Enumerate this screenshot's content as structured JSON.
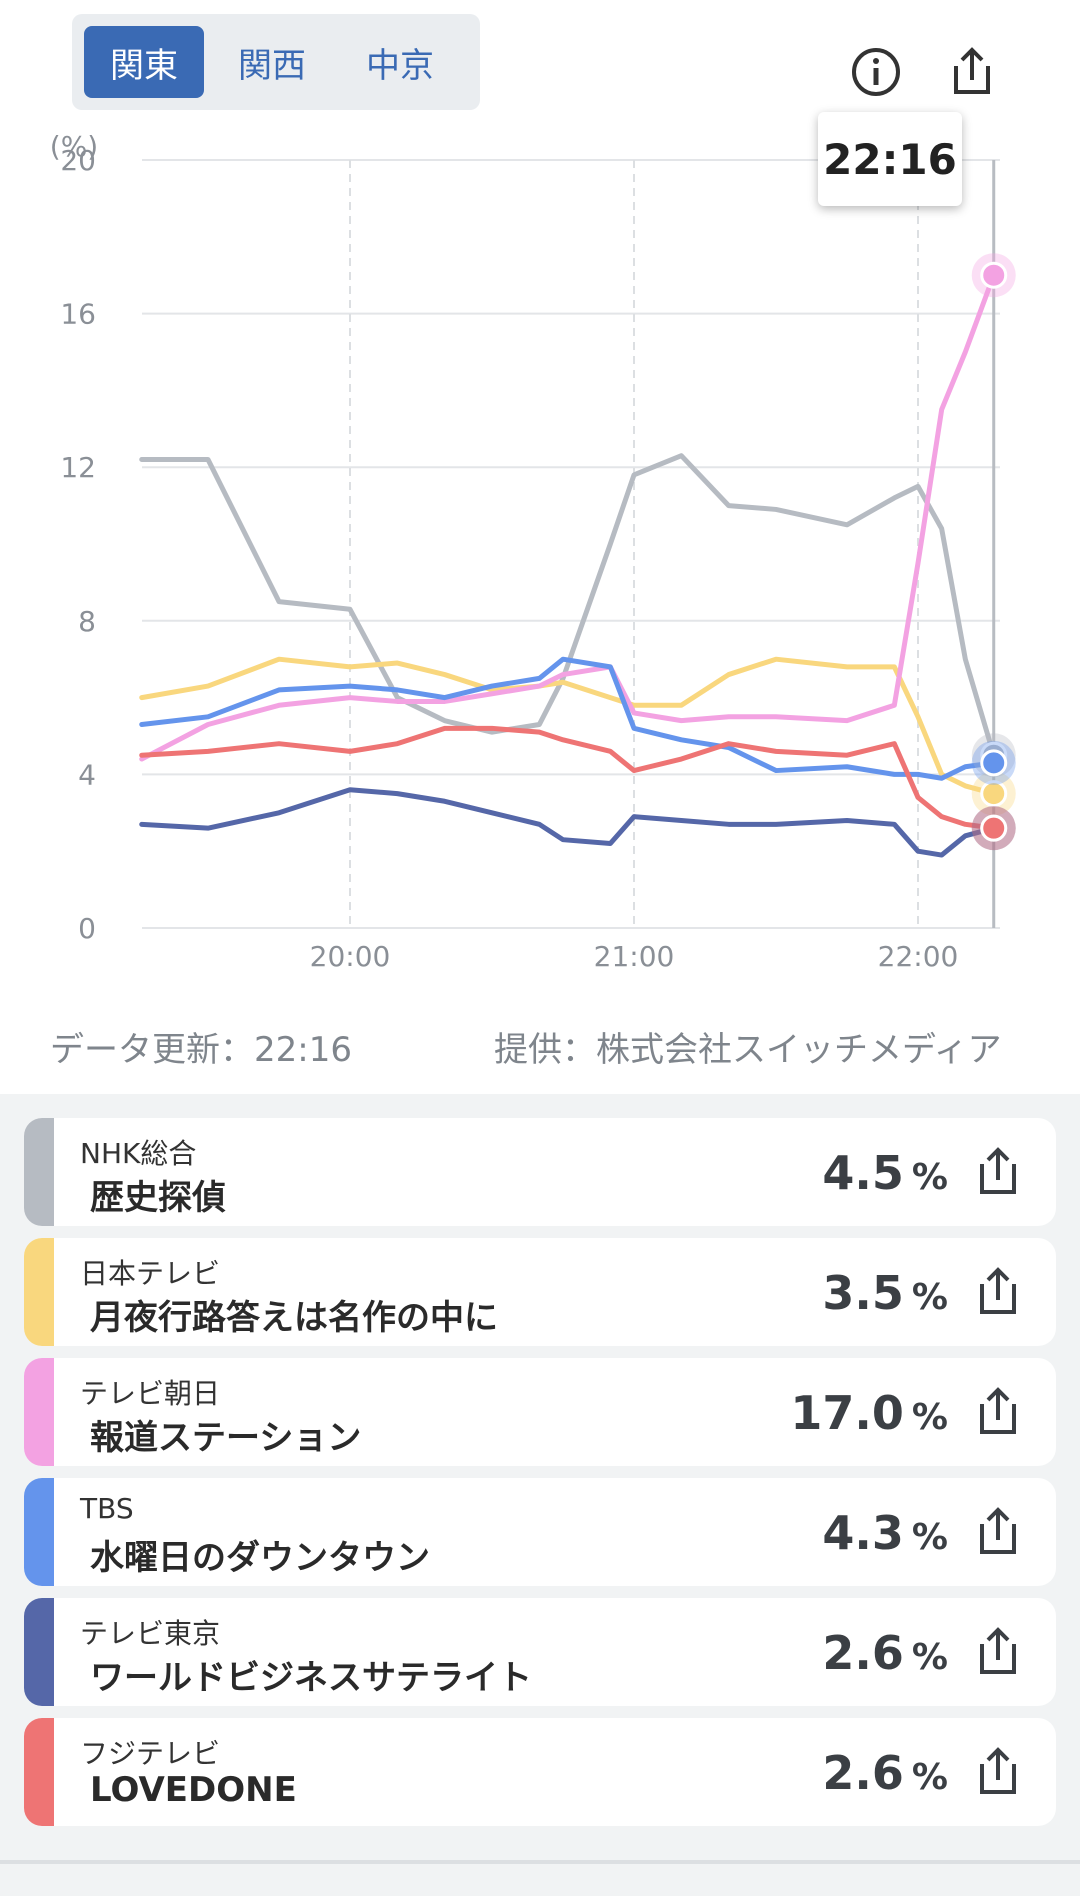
{
  "tabs": [
    "関東",
    "関西",
    "中京"
  ],
  "active_tab": "関東",
  "icons": {
    "info": "info-icon",
    "share": "share-icon"
  },
  "tooltip_time": "22:16",
  "footer": {
    "updated": "データ更新：22:16",
    "provider": "提供：株式会社スイッチメディア"
  },
  "channels": [
    {
      "station": "NHK総合",
      "program": "歴史探偵",
      "rating": "4.5",
      "unit": "%",
      "color": "#b6bbc2"
    },
    {
      "station": "日本テレビ",
      "program": "月夜行路答えは名作の中に",
      "rating": "3.5",
      "unit": "%",
      "color": "#f9d77e"
    },
    {
      "station": "テレビ朝日",
      "program": "報道ステーション",
      "rating": "17.0",
      "unit": "%",
      "color": "#f3a2e2"
    },
    {
      "station": "TBS",
      "program": "水曜日のダウンタウン",
      "rating": "4.3",
      "unit": "%",
      "color": "#6494ec"
    },
    {
      "station": "テレビ東京",
      "program": "ワールドビジネスサテライト",
      "rating": "2.6",
      "unit": "%",
      "color": "#5567a8"
    },
    {
      "station": "フジテレビ",
      "program": "LOVEDONE",
      "rating": "2.6",
      "unit": "%",
      "color": "#ee7474"
    }
  ],
  "chart_data": {
    "type": "line",
    "ylabel": "(%)",
    "ylim": [
      0,
      20
    ],
    "yticks": [
      "20",
      "16",
      "12",
      "8",
      "4",
      "0"
    ],
    "xticks": [
      "20:00",
      "21:00",
      "22:00"
    ],
    "grid": true,
    "x": [
      "19:16",
      "19:30",
      "19:45",
      "20:00",
      "20:10",
      "20:20",
      "20:30",
      "20:40",
      "20:45",
      "20:55",
      "21:00",
      "21:10",
      "21:20",
      "21:30",
      "21:45",
      "21:55",
      "22:00",
      "22:05",
      "22:10",
      "22:16"
    ],
    "series": [
      {
        "name": "NHK総合",
        "color": "#b6bbc2",
        "values": [
          12.2,
          12.2,
          8.5,
          8.3,
          6.0,
          5.4,
          5.1,
          5.3,
          6.5,
          10.0,
          11.8,
          12.3,
          11.0,
          10.9,
          10.5,
          11.2,
          11.5,
          10.4,
          7.0,
          4.5
        ]
      },
      {
        "name": "日本テレビ",
        "color": "#f9d77e",
        "values": [
          6.0,
          6.3,
          7.0,
          6.8,
          6.9,
          6.6,
          6.2,
          6.3,
          6.4,
          6.0,
          5.8,
          5.8,
          6.6,
          7.0,
          6.8,
          6.8,
          5.5,
          4.0,
          3.7,
          3.5
        ]
      },
      {
        "name": "テレビ朝日",
        "color": "#f3a2e2",
        "values": [
          4.4,
          5.3,
          5.8,
          6.0,
          5.9,
          5.9,
          6.1,
          6.3,
          6.6,
          6.8,
          5.6,
          5.4,
          5.5,
          5.5,
          5.4,
          5.8,
          9.5,
          13.5,
          15.0,
          17.0
        ]
      },
      {
        "name": "TBS",
        "color": "#6494ec",
        "values": [
          5.3,
          5.5,
          6.2,
          6.3,
          6.2,
          6.0,
          6.3,
          6.5,
          7.0,
          6.8,
          5.2,
          4.9,
          4.7,
          4.1,
          4.2,
          4.0,
          4.0,
          3.9,
          4.2,
          4.3
        ]
      },
      {
        "name": "テレビ東京",
        "color": "#5567a8",
        "values": [
          2.7,
          2.6,
          3.0,
          3.6,
          3.5,
          3.3,
          3.0,
          2.7,
          2.3,
          2.2,
          2.9,
          2.8,
          2.7,
          2.7,
          2.8,
          2.7,
          2.0,
          1.9,
          2.4,
          2.6
        ]
      },
      {
        "name": "フジテレビ",
        "color": "#ee7474",
        "values": [
          4.5,
          4.6,
          4.8,
          4.6,
          4.8,
          5.2,
          5.2,
          5.1,
          4.9,
          4.6,
          4.1,
          4.4,
          4.8,
          4.6,
          4.5,
          4.8,
          3.4,
          2.9,
          2.7,
          2.6
        ]
      }
    ]
  }
}
